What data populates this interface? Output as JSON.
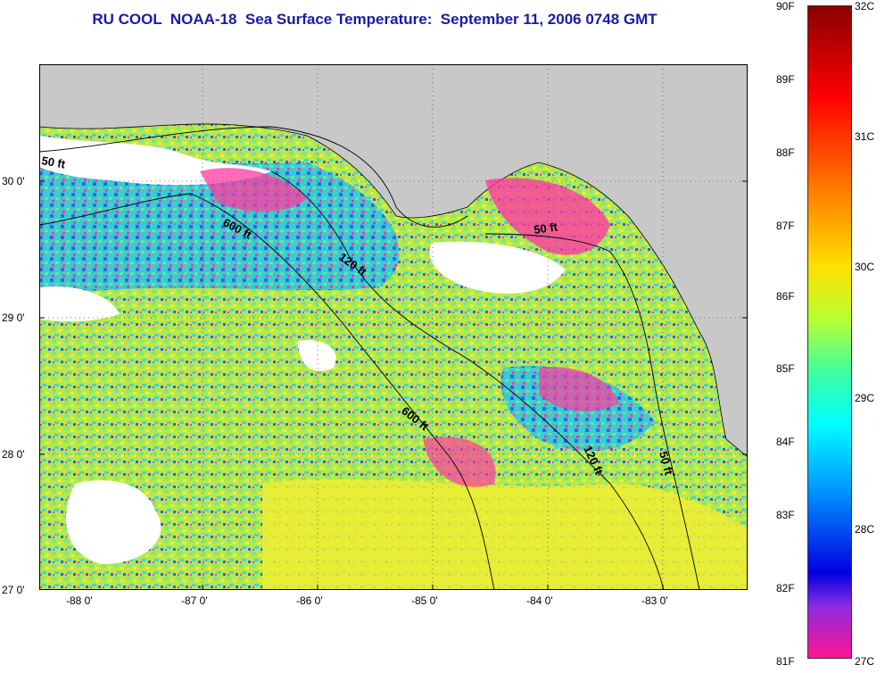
{
  "title": "RU COOL  NOAA-18  Sea Surface Temperature:  September 11, 2006 0748 GMT",
  "map": {
    "lat_labels": [
      "30 0'",
      "29 0'",
      "28 0'",
      "27 0'"
    ],
    "lon_labels": [
      "-88 0'",
      "-87 0'",
      "-86 0'",
      "-85 0'",
      "-84 0'",
      "-83 0'"
    ],
    "contour_labels": [
      "50 ft",
      "600 ft",
      "120 ft",
      "600 ft",
      "50 ft",
      "120 ft",
      "50 ft"
    ]
  },
  "colorbar": {
    "fahrenheit_labels": [
      "90F",
      "89F",
      "88F",
      "87F",
      "86F",
      "85F",
      "84F",
      "83F",
      "82F",
      "81F"
    ],
    "celsius_labels": [
      "32C",
      "31C",
      "30C",
      "29C",
      "28C",
      "27C"
    ]
  },
  "colors": {
    "land": "#c8c8c8",
    "cloud": "#ffffff",
    "title": "#1a1aa8"
  }
}
